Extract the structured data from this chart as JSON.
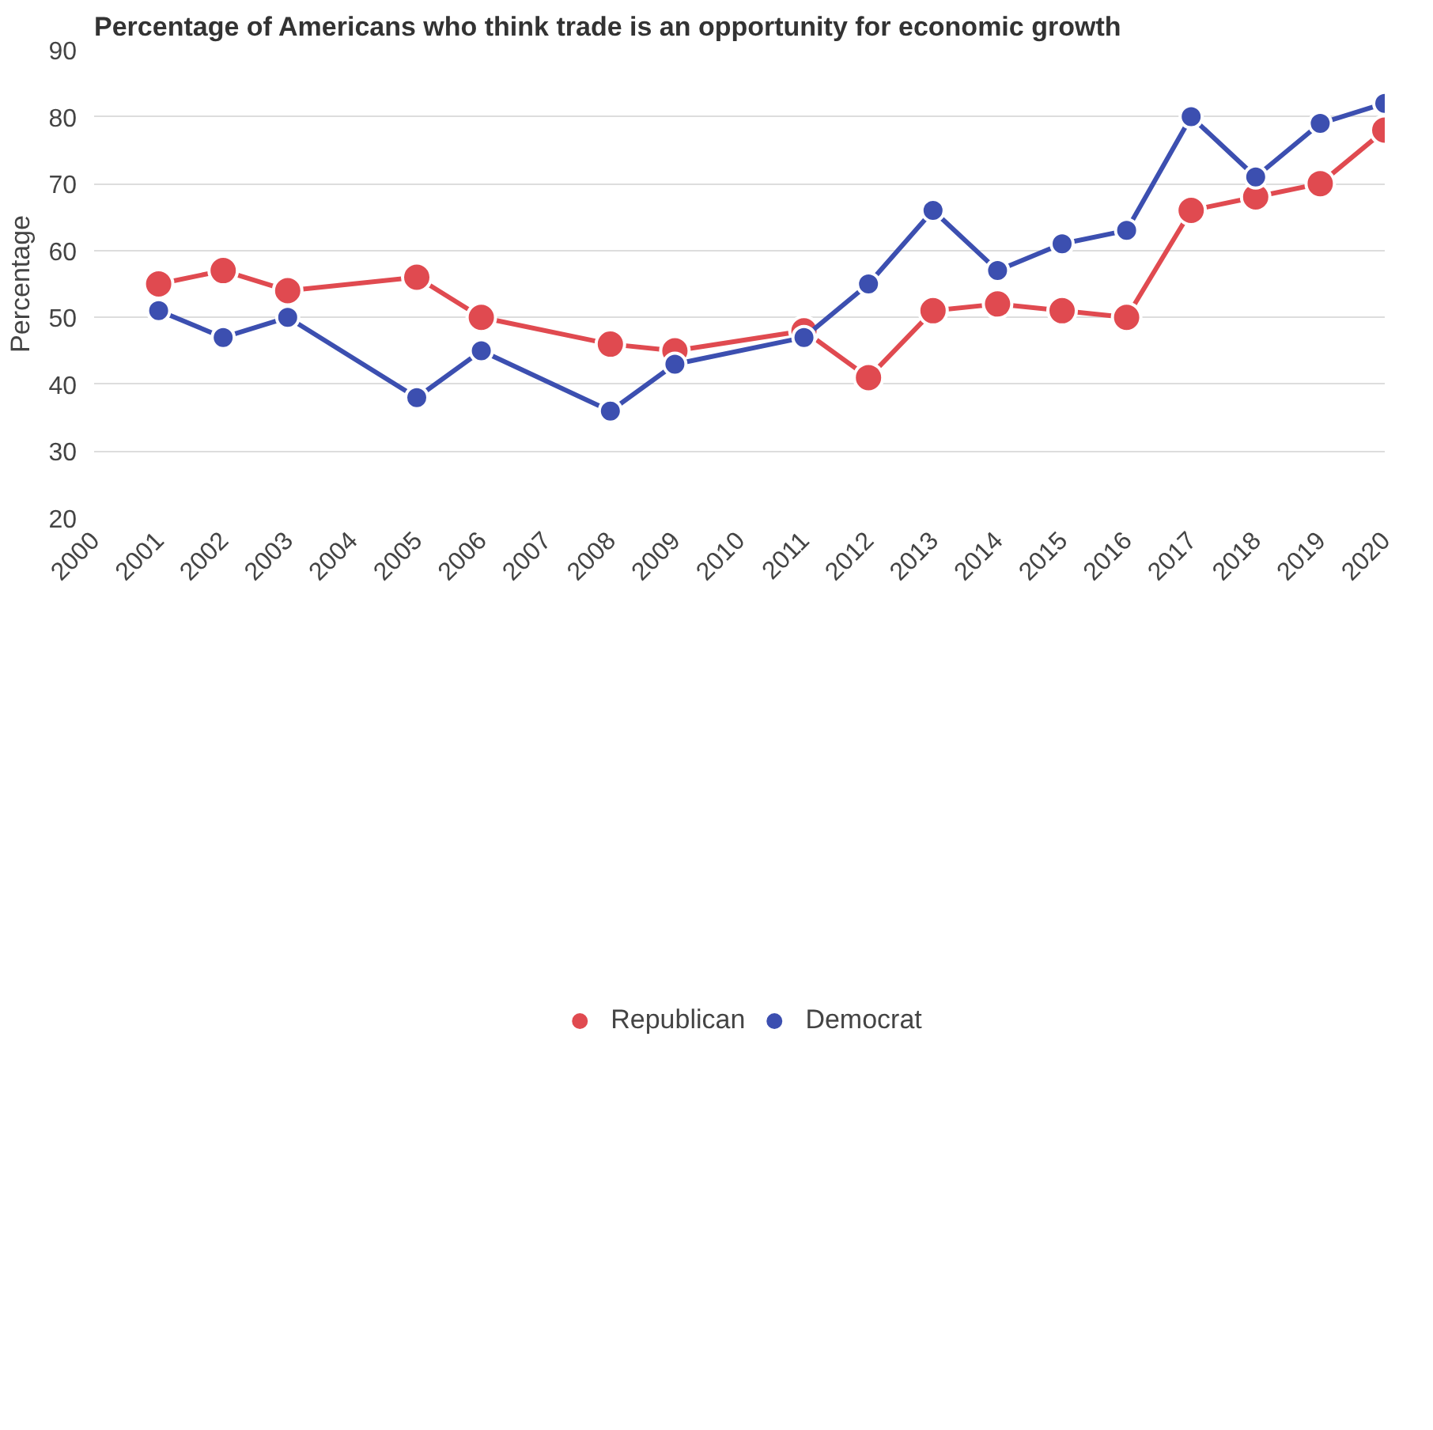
{
  "chart_data": {
    "type": "line",
    "title": "Percentage of Americans who think trade is an opportunity for economic growth",
    "ylabel": "Percentage",
    "xlim": [
      2000,
      2020
    ],
    "xticks": [
      2000,
      2001,
      2002,
      2003,
      2004,
      2005,
      2006,
      2007,
      2008,
      2009,
      2010,
      2011,
      2012,
      2013,
      2014,
      2015,
      2016,
      2017,
      2018,
      2019,
      2020
    ],
    "ylim": [
      20,
      90
    ],
    "yticks": [
      20,
      30,
      40,
      50,
      60,
      70,
      80,
      90
    ],
    "x": [
      2001,
      2002,
      2003,
      2005,
      2006,
      2008,
      2009,
      2011,
      2012,
      2013,
      2014,
      2015,
      2016,
      2017,
      2018,
      2019,
      2020
    ],
    "series": [
      {
        "name": "Republican",
        "color": "#e04a50",
        "values": [
          55,
          57,
          54,
          56,
          50,
          46,
          45,
          48,
          41,
          51,
          52,
          51,
          50,
          66,
          68,
          70,
          78
        ]
      },
      {
        "name": "Democrat",
        "color": "#3c4fb0",
        "values": [
          51,
          47,
          50,
          38,
          45,
          36,
          43,
          47,
          55,
          66,
          57,
          61,
          63,
          80,
          71,
          79,
          82
        ]
      }
    ],
    "grid": "y",
    "legend": "bottom",
    "marker": "circle",
    "line_style": "solid"
  }
}
